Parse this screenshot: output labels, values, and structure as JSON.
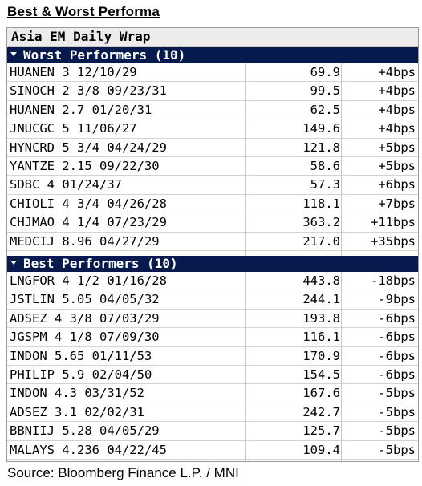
{
  "heading": "Best & Worst Performa",
  "wrap_title": "Asia EM Daily Wrap",
  "worst": {
    "title": "Worst Performers (10)",
    "rows": [
      {
        "bond": "HUANEN 3 12/10/29",
        "price": "69.9",
        "change": "+4bps"
      },
      {
        "bond": "SINOCH 2 3/8 09/23/31",
        "price": "99.5",
        "change": "+4bps"
      },
      {
        "bond": "HUANEN 2.7 01/20/31",
        "price": "62.5",
        "change": "+4bps"
      },
      {
        "bond": "JNUCGC 5 11/06/27",
        "price": "149.6",
        "change": "+4bps"
      },
      {
        "bond": "HYNCRD 5 3/4 04/24/29",
        "price": "121.8",
        "change": "+5bps"
      },
      {
        "bond": "YANTZE 2.15 09/22/30",
        "price": "58.6",
        "change": "+5bps"
      },
      {
        "bond": "SDBC 4 01/24/37",
        "price": "57.3",
        "change": "+6bps"
      },
      {
        "bond": "CHIOLI 4 3/4 04/26/28",
        "price": "118.1",
        "change": "+7bps"
      },
      {
        "bond": "CHJMAO 4 1/4 07/23/29",
        "price": "363.2",
        "change": "+11bps"
      },
      {
        "bond": "MEDCIJ 8.96 04/27/29",
        "price": "217.0",
        "change": "+35bps"
      }
    ]
  },
  "best": {
    "title": "Best Performers (10)",
    "rows": [
      {
        "bond": "LNGFOR 4 1/2 01/16/28",
        "price": "443.8",
        "change": "-18bps"
      },
      {
        "bond": "JSTLIN 5.05 04/05/32",
        "price": "244.1",
        "change": "-9bps"
      },
      {
        "bond": "ADSEZ 4 3/8 07/03/29",
        "price": "193.8",
        "change": "-6bps"
      },
      {
        "bond": "JGSPM 4 1/8 07/09/30",
        "price": "116.1",
        "change": "-6bps"
      },
      {
        "bond": "INDON 5.65 01/11/53",
        "price": "170.9",
        "change": "-6bps"
      },
      {
        "bond": "PHILIP 5.9 02/04/50",
        "price": "154.5",
        "change": "-6bps"
      },
      {
        "bond": "INDON 4.3 03/31/52",
        "price": "167.6",
        "change": "-5bps"
      },
      {
        "bond": "ADSEZ 3.1 02/02/31",
        "price": "242.7",
        "change": "-5bps"
      },
      {
        "bond": "BBNIIJ 5.28 04/05/29",
        "price": "125.7",
        "change": "-5bps"
      },
      {
        "bond": "MALAYS 4.236 04/22/45",
        "price": "109.4",
        "change": "-5bps"
      }
    ]
  },
  "source": "Source: Bloomberg Finance L.P. / MNI",
  "colors": {
    "section_bg": "#071a4e",
    "title_bg": "#ececec"
  }
}
